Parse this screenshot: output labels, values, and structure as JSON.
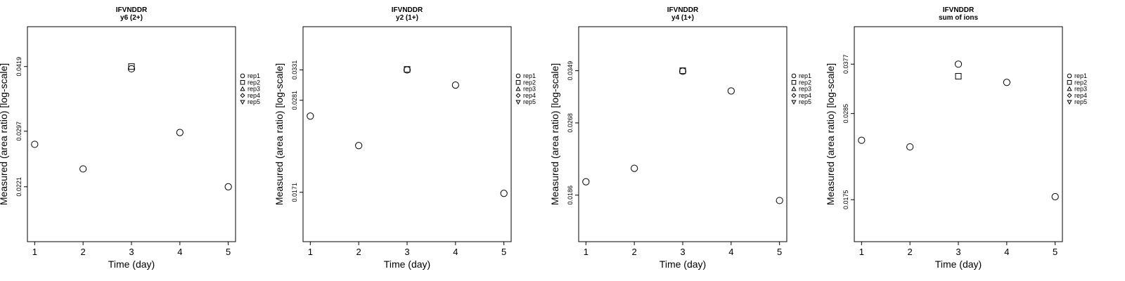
{
  "chart_data": [
    {
      "type": "scatter",
      "title": "IFVNDDR",
      "subtitle": "y6 (2+)",
      "xlabel": "Time (day)",
      "ylabel": "Measured (area ratio) [log-scale]",
      "yscale": "log",
      "x_ticks": [
        "1",
        "2",
        "3",
        "4",
        "5"
      ],
      "y_ticks": [
        0.0221,
        0.0297,
        0.0419
      ],
      "y_tick_labels": [
        "0.0221",
        "0.0297",
        "0.0419"
      ],
      "xlim": [
        0.85,
        5.15
      ],
      "ylim": [
        0.0165,
        0.0518
      ],
      "legend": {
        "position": "right",
        "entries": [
          "rep1",
          "rep2",
          "rep3",
          "rep4",
          "rep5"
        ]
      },
      "series": [
        {
          "name": "rep1",
          "marker": "circle",
          "x": [
            1,
            2,
            3,
            4,
            5
          ],
          "y": [
            0.0277,
            0.0243,
            0.0414,
            0.0295,
            0.0221
          ]
        },
        {
          "name": "rep2",
          "marker": "square",
          "x": [
            3
          ],
          "y": [
            0.0419
          ]
        }
      ]
    },
    {
      "type": "scatter",
      "title": "IFVNDDR",
      "subtitle": "y2 (1+)",
      "xlabel": "Time (day)",
      "ylabel": "Measured (area ratio) [log-scale]",
      "yscale": "log",
      "x_ticks": [
        "1",
        "2",
        "3",
        "4",
        "5"
      ],
      "y_ticks": [
        0.0171,
        0.0281,
        0.0331
      ],
      "y_tick_labels": [
        "0.0171",
        "0.0281",
        "0.0331"
      ],
      "xlim": [
        0.85,
        5.15
      ],
      "ylim": [
        0.0131,
        0.0418
      ],
      "legend": {
        "position": "right",
        "entries": [
          "rep1",
          "rep2",
          "rep3",
          "rep4",
          "rep5"
        ]
      },
      "series": [
        {
          "name": "rep1",
          "marker": "circle",
          "x": [
            1,
            2,
            3,
            4,
            5
          ],
          "y": [
            0.0258,
            0.022,
            0.0331,
            0.0305,
            0.017
          ]
        },
        {
          "name": "rep2",
          "marker": "square",
          "x": [
            3
          ],
          "y": [
            0.0332
          ]
        }
      ]
    },
    {
      "type": "scatter",
      "title": "IFVNDDR",
      "subtitle": "y4 (1+)",
      "xlabel": "Time (day)",
      "ylabel": "Measured (area ratio) [log-scale]",
      "yscale": "log",
      "x_ticks": [
        "1",
        "2",
        "3",
        "4",
        "5"
      ],
      "y_ticks": [
        0.0186,
        0.0268,
        0.0349
      ],
      "y_tick_labels": [
        "0.0186",
        "0.0268",
        "0.0349"
      ],
      "xlim": [
        0.85,
        5.15
      ],
      "ylim": [
        0.0147,
        0.0436
      ],
      "legend": {
        "position": "right",
        "entries": [
          "rep1",
          "rep2",
          "rep3",
          "rep4",
          "rep5"
        ]
      },
      "series": [
        {
          "name": "rep1",
          "marker": "circle",
          "x": [
            1,
            2,
            3,
            4,
            5
          ],
          "y": [
            0.0199,
            0.0213,
            0.0348,
            0.0315,
            0.0181
          ]
        },
        {
          "name": "rep2",
          "marker": "square",
          "x": [
            3
          ],
          "y": [
            0.0349
          ]
        }
      ]
    },
    {
      "type": "scatter",
      "title": "IFVNDDR",
      "subtitle": "sum of ions",
      "xlabel": "Time (day)",
      "ylabel": "Measured (area ratio) [log-scale]",
      "yscale": "log",
      "x_ticks": [
        "1",
        "2",
        "3",
        "4",
        "5"
      ],
      "y_ticks": [
        0.0175,
        0.0285,
        0.0377
      ],
      "y_tick_labels": [
        "0.0175",
        "0.0285",
        "0.0377"
      ],
      "xlim": [
        0.85,
        5.15
      ],
      "ylim": [
        0.0138,
        0.0466
      ],
      "legend": {
        "position": "right",
        "entries": [
          "rep1",
          "rep2",
          "rep3",
          "rep4",
          "rep5"
        ]
      },
      "series": [
        {
          "name": "rep1",
          "marker": "circle",
          "x": [
            1,
            2,
            3,
            4,
            5
          ],
          "y": [
            0.0245,
            0.0236,
            0.0377,
            0.034,
            0.0178
          ]
        },
        {
          "name": "rep2",
          "marker": "square",
          "x": [
            3
          ],
          "y": [
            0.0352
          ]
        }
      ]
    }
  ]
}
